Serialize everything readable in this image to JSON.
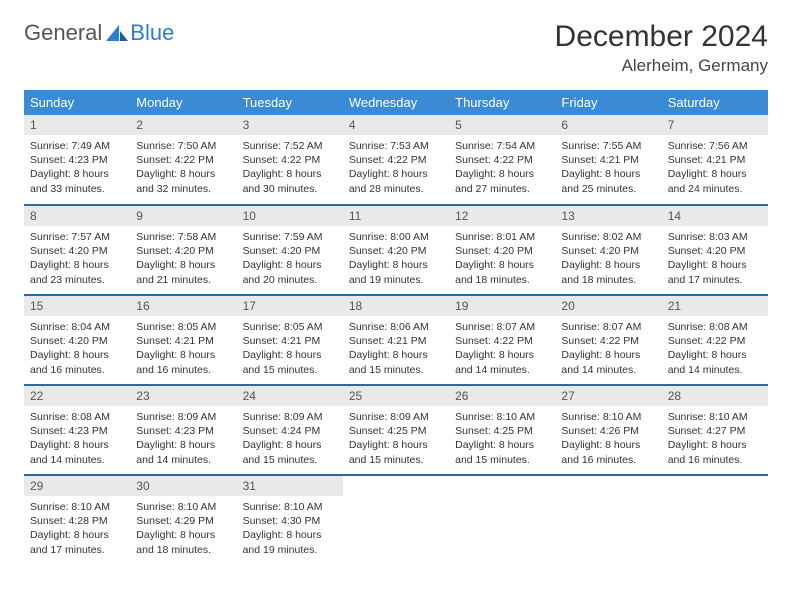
{
  "logo": {
    "text1": "General",
    "text2": "Blue"
  },
  "title": "December 2024",
  "location": "Alerheim, Germany",
  "colors": {
    "header_bg": "#3a8ad6",
    "row_border": "#2b6aa8",
    "daynum_bg": "#e9e9e9",
    "text": "#333333"
  },
  "weekdays": [
    "Sunday",
    "Monday",
    "Tuesday",
    "Wednesday",
    "Thursday",
    "Friday",
    "Saturday"
  ],
  "weeks": [
    [
      {
        "n": "1",
        "sr": "Sunrise: 7:49 AM",
        "ss": "Sunset: 4:23 PM",
        "dl1": "Daylight: 8 hours",
        "dl2": "and 33 minutes."
      },
      {
        "n": "2",
        "sr": "Sunrise: 7:50 AM",
        "ss": "Sunset: 4:22 PM",
        "dl1": "Daylight: 8 hours",
        "dl2": "and 32 minutes."
      },
      {
        "n": "3",
        "sr": "Sunrise: 7:52 AM",
        "ss": "Sunset: 4:22 PM",
        "dl1": "Daylight: 8 hours",
        "dl2": "and 30 minutes."
      },
      {
        "n": "4",
        "sr": "Sunrise: 7:53 AM",
        "ss": "Sunset: 4:22 PM",
        "dl1": "Daylight: 8 hours",
        "dl2": "and 28 minutes."
      },
      {
        "n": "5",
        "sr": "Sunrise: 7:54 AM",
        "ss": "Sunset: 4:22 PM",
        "dl1": "Daylight: 8 hours",
        "dl2": "and 27 minutes."
      },
      {
        "n": "6",
        "sr": "Sunrise: 7:55 AM",
        "ss": "Sunset: 4:21 PM",
        "dl1": "Daylight: 8 hours",
        "dl2": "and 25 minutes."
      },
      {
        "n": "7",
        "sr": "Sunrise: 7:56 AM",
        "ss": "Sunset: 4:21 PM",
        "dl1": "Daylight: 8 hours",
        "dl2": "and 24 minutes."
      }
    ],
    [
      {
        "n": "8",
        "sr": "Sunrise: 7:57 AM",
        "ss": "Sunset: 4:20 PM",
        "dl1": "Daylight: 8 hours",
        "dl2": "and 23 minutes."
      },
      {
        "n": "9",
        "sr": "Sunrise: 7:58 AM",
        "ss": "Sunset: 4:20 PM",
        "dl1": "Daylight: 8 hours",
        "dl2": "and 21 minutes."
      },
      {
        "n": "10",
        "sr": "Sunrise: 7:59 AM",
        "ss": "Sunset: 4:20 PM",
        "dl1": "Daylight: 8 hours",
        "dl2": "and 20 minutes."
      },
      {
        "n": "11",
        "sr": "Sunrise: 8:00 AM",
        "ss": "Sunset: 4:20 PM",
        "dl1": "Daylight: 8 hours",
        "dl2": "and 19 minutes."
      },
      {
        "n": "12",
        "sr": "Sunrise: 8:01 AM",
        "ss": "Sunset: 4:20 PM",
        "dl1": "Daylight: 8 hours",
        "dl2": "and 18 minutes."
      },
      {
        "n": "13",
        "sr": "Sunrise: 8:02 AM",
        "ss": "Sunset: 4:20 PM",
        "dl1": "Daylight: 8 hours",
        "dl2": "and 18 minutes."
      },
      {
        "n": "14",
        "sr": "Sunrise: 8:03 AM",
        "ss": "Sunset: 4:20 PM",
        "dl1": "Daylight: 8 hours",
        "dl2": "and 17 minutes."
      }
    ],
    [
      {
        "n": "15",
        "sr": "Sunrise: 8:04 AM",
        "ss": "Sunset: 4:20 PM",
        "dl1": "Daylight: 8 hours",
        "dl2": "and 16 minutes."
      },
      {
        "n": "16",
        "sr": "Sunrise: 8:05 AM",
        "ss": "Sunset: 4:21 PM",
        "dl1": "Daylight: 8 hours",
        "dl2": "and 16 minutes."
      },
      {
        "n": "17",
        "sr": "Sunrise: 8:05 AM",
        "ss": "Sunset: 4:21 PM",
        "dl1": "Daylight: 8 hours",
        "dl2": "and 15 minutes."
      },
      {
        "n": "18",
        "sr": "Sunrise: 8:06 AM",
        "ss": "Sunset: 4:21 PM",
        "dl1": "Daylight: 8 hours",
        "dl2": "and 15 minutes."
      },
      {
        "n": "19",
        "sr": "Sunrise: 8:07 AM",
        "ss": "Sunset: 4:22 PM",
        "dl1": "Daylight: 8 hours",
        "dl2": "and 14 minutes."
      },
      {
        "n": "20",
        "sr": "Sunrise: 8:07 AM",
        "ss": "Sunset: 4:22 PM",
        "dl1": "Daylight: 8 hours",
        "dl2": "and 14 minutes."
      },
      {
        "n": "21",
        "sr": "Sunrise: 8:08 AM",
        "ss": "Sunset: 4:22 PM",
        "dl1": "Daylight: 8 hours",
        "dl2": "and 14 minutes."
      }
    ],
    [
      {
        "n": "22",
        "sr": "Sunrise: 8:08 AM",
        "ss": "Sunset: 4:23 PM",
        "dl1": "Daylight: 8 hours",
        "dl2": "and 14 minutes."
      },
      {
        "n": "23",
        "sr": "Sunrise: 8:09 AM",
        "ss": "Sunset: 4:23 PM",
        "dl1": "Daylight: 8 hours",
        "dl2": "and 14 minutes."
      },
      {
        "n": "24",
        "sr": "Sunrise: 8:09 AM",
        "ss": "Sunset: 4:24 PM",
        "dl1": "Daylight: 8 hours",
        "dl2": "and 15 minutes."
      },
      {
        "n": "25",
        "sr": "Sunrise: 8:09 AM",
        "ss": "Sunset: 4:25 PM",
        "dl1": "Daylight: 8 hours",
        "dl2": "and 15 minutes."
      },
      {
        "n": "26",
        "sr": "Sunrise: 8:10 AM",
        "ss": "Sunset: 4:25 PM",
        "dl1": "Daylight: 8 hours",
        "dl2": "and 15 minutes."
      },
      {
        "n": "27",
        "sr": "Sunrise: 8:10 AM",
        "ss": "Sunset: 4:26 PM",
        "dl1": "Daylight: 8 hours",
        "dl2": "and 16 minutes."
      },
      {
        "n": "28",
        "sr": "Sunrise: 8:10 AM",
        "ss": "Sunset: 4:27 PM",
        "dl1": "Daylight: 8 hours",
        "dl2": "and 16 minutes."
      }
    ],
    [
      {
        "n": "29",
        "sr": "Sunrise: 8:10 AM",
        "ss": "Sunset: 4:28 PM",
        "dl1": "Daylight: 8 hours",
        "dl2": "and 17 minutes."
      },
      {
        "n": "30",
        "sr": "Sunrise: 8:10 AM",
        "ss": "Sunset: 4:29 PM",
        "dl1": "Daylight: 8 hours",
        "dl2": "and 18 minutes."
      },
      {
        "n": "31",
        "sr": "Sunrise: 8:10 AM",
        "ss": "Sunset: 4:30 PM",
        "dl1": "Daylight: 8 hours",
        "dl2": "and 19 minutes."
      },
      {
        "empty": true
      },
      {
        "empty": true
      },
      {
        "empty": true
      },
      {
        "empty": true
      }
    ]
  ]
}
